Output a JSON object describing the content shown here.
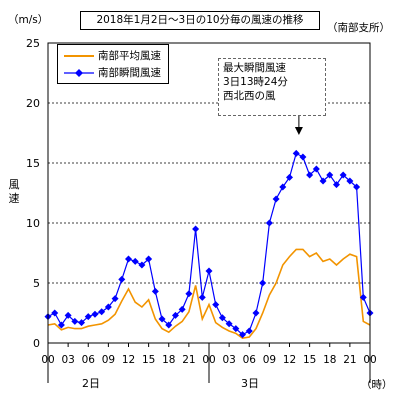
{
  "chart_data": {
    "type": "line",
    "title": "2018年1月2日～3日の10分毎の風速の推移",
    "source": "（南部支所）",
    "ylabel": "風速",
    "yunit": "（m/s）",
    "xunit": "（時）",
    "ylim": [
      0,
      25
    ],
    "yticks": [
      "0",
      "5",
      "10",
      "15",
      "20",
      "25"
    ],
    "xticks": [
      "00",
      "03",
      "06",
      "09",
      "12",
      "15",
      "18",
      "21",
      "00",
      "03",
      "06",
      "09",
      "12",
      "15",
      "18",
      "21",
      "00"
    ],
    "days": [
      "2日",
      "3日"
    ],
    "grid": true,
    "legend_position": "top-left",
    "annotation": {
      "lines": [
        "最大瞬間風速",
        "3日13時24分",
        "西北西の風"
      ],
      "x_hour": 37.4,
      "y": 17.0
    },
    "series": [
      {
        "name": "南部平均風速",
        "color": "#f29400",
        "marker": "none",
        "x": [
          0,
          1,
          2,
          3,
          4,
          5,
          6,
          7,
          8,
          9,
          10,
          11,
          12,
          13,
          14,
          15,
          16,
          17,
          18,
          19,
          20,
          21,
          22,
          23,
          24,
          25,
          26,
          27,
          28,
          29,
          30,
          31,
          32,
          33,
          34,
          35,
          36,
          37,
          38,
          39,
          40,
          41,
          42,
          43,
          44,
          45,
          46,
          47,
          48
        ],
        "values": [
          1.5,
          1.6,
          1.1,
          1.3,
          1.2,
          1.2,
          1.4,
          1.5,
          1.6,
          1.9,
          2.4,
          3.5,
          4.5,
          3.4,
          3.0,
          3.6,
          2.0,
          1.2,
          0.9,
          1.4,
          1.8,
          2.6,
          4.8,
          2.0,
          3.2,
          1.7,
          1.3,
          1.0,
          0.8,
          0.4,
          0.5,
          1.2,
          2.5,
          4.0,
          5.0,
          6.5,
          7.2,
          7.8,
          7.8,
          7.2,
          7.5,
          6.8,
          7.0,
          6.5,
          7.0,
          7.4,
          7.2,
          1.8,
          1.5
        ]
      },
      {
        "name": "南部瞬間風速",
        "color": "#0000ff",
        "marker": "diamond",
        "x": [
          0,
          1,
          2,
          3,
          4,
          5,
          6,
          7,
          8,
          9,
          10,
          11,
          12,
          13,
          14,
          15,
          16,
          17,
          18,
          19,
          20,
          21,
          22,
          23,
          24,
          25,
          26,
          27,
          28,
          29,
          30,
          31,
          32,
          33,
          34,
          35,
          36,
          37,
          38,
          39,
          40,
          41,
          42,
          43,
          44,
          45,
          46,
          47,
          48
        ],
        "values": [
          2.2,
          2.5,
          1.5,
          2.3,
          1.8,
          1.7,
          2.2,
          2.4,
          2.6,
          3.0,
          3.7,
          5.3,
          7.0,
          6.8,
          6.5,
          7.0,
          4.3,
          2.0,
          1.5,
          2.3,
          2.8,
          4.1,
          9.5,
          3.8,
          6.0,
          3.2,
          2.1,
          1.6,
          1.2,
          0.7,
          1.0,
          2.5,
          5.0,
          10.0,
          12.0,
          13.0,
          13.8,
          15.8,
          15.5,
          14.0,
          14.5,
          13.5,
          14.0,
          13.2,
          14.0,
          13.5,
          13.0,
          3.8,
          2.5
        ]
      }
    ]
  }
}
